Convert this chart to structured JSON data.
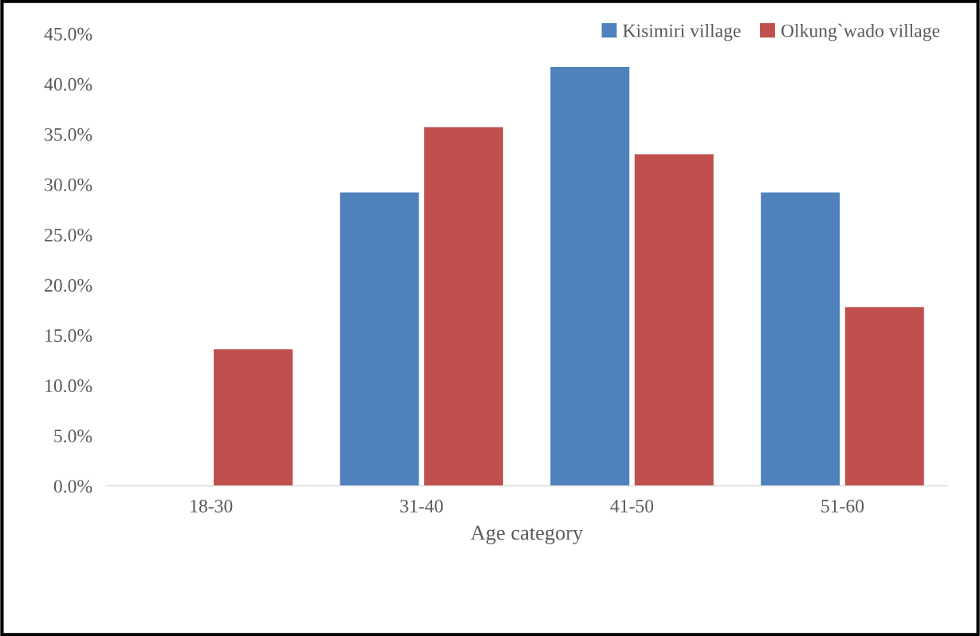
{
  "chart_data": {
    "type": "bar",
    "xlabel": "Age category",
    "categories": [
      "18-30",
      "31-40",
      "41-50",
      "51-60"
    ],
    "series": [
      {
        "name": "Kisimiri village",
        "color": "#4f81bd",
        "values": [
          0,
          29.2,
          41.7,
          29.2
        ]
      },
      {
        "name": "Olkung`wado village",
        "color": "#c0504d",
        "values": [
          13.6,
          35.7,
          33.0,
          17.8
        ]
      }
    ],
    "ylim": [
      0,
      45
    ],
    "yticks": [
      {
        "value": 0,
        "label": "0.0%"
      },
      {
        "value": 5,
        "label": "5.0%"
      },
      {
        "value": 10,
        "label": "10.0%"
      },
      {
        "value": 15,
        "label": "15.0%"
      },
      {
        "value": 20,
        "label": "20.0%"
      },
      {
        "value": 25,
        "label": "25.0%"
      },
      {
        "value": 30,
        "label": "30.0%"
      },
      {
        "value": 35,
        "label": "35.0%"
      },
      {
        "value": 40,
        "label": "40.0%"
      },
      {
        "value": 45,
        "label": "45.0%"
      }
    ],
    "grid": false,
    "legend": "top right"
  }
}
